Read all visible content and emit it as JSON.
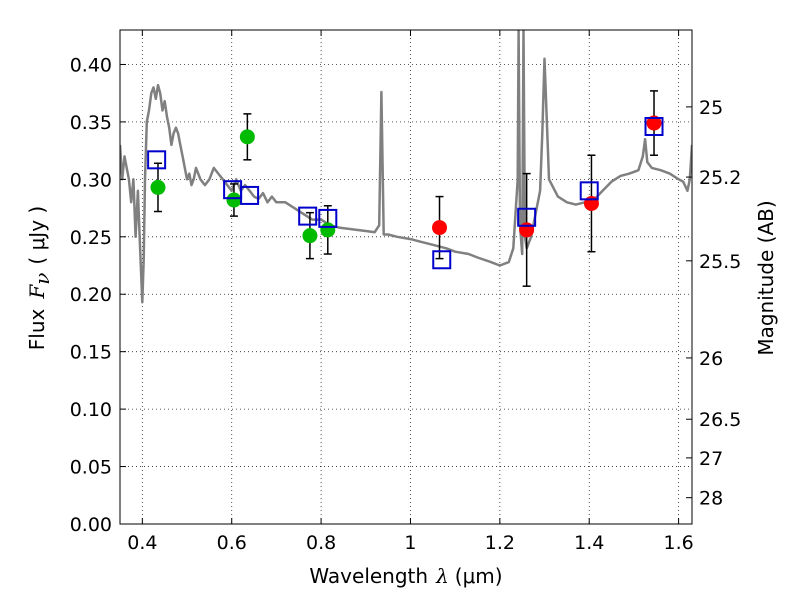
{
  "chart_data": {
    "type": "scatter",
    "title": "",
    "xlabel": "Wavelength",
    "xlabel_symbol": "λ",
    "xlabel_unit": "(μm)",
    "ylabel": "Flux",
    "ylabel_symbol": "F",
    "ylabel_subscript": "ν",
    "ylabel_unit": "( μJy )",
    "y2label": "Magnitude (AB)",
    "xlim": [
      0.35,
      1.63
    ],
    "ylim": [
      0.0,
      0.43
    ],
    "grid": true,
    "x_ticks": [
      0.4,
      0.6,
      0.8,
      1.0,
      1.2,
      1.4,
      1.6
    ],
    "x_tick_labels": [
      "0.4",
      "0.6",
      "0.8",
      "1",
      "1.2",
      "1.4",
      "1.6"
    ],
    "y_ticks": [
      0.0,
      0.05,
      0.1,
      0.15,
      0.2,
      0.25,
      0.3,
      0.35,
      0.4
    ],
    "y_tick_labels": [
      "0.00",
      "0.05",
      "0.10",
      "0.15",
      "0.20",
      "0.25",
      "0.30",
      "0.35",
      "0.40"
    ],
    "y2_ticks": [
      25,
      25.2,
      25.5,
      26,
      26.5,
      27,
      28
    ],
    "y2_tick_labels": [
      "25",
      "25.2",
      "25.5",
      "26",
      "26.5",
      "27",
      "28"
    ],
    "colors": {
      "spectrum": "#808080",
      "green": "#00bb00",
      "red": "#ff0000",
      "model": "#0000cc",
      "error": "#000000"
    },
    "spectrum": {
      "x": [
        0.35,
        0.355,
        0.36,
        0.365,
        0.37,
        0.375,
        0.38,
        0.385,
        0.39,
        0.395,
        0.398,
        0.4,
        0.403,
        0.406,
        0.41,
        0.415,
        0.42,
        0.425,
        0.43,
        0.435,
        0.44,
        0.445,
        0.45,
        0.455,
        0.46,
        0.465,
        0.47,
        0.475,
        0.48,
        0.485,
        0.49,
        0.495,
        0.5,
        0.505,
        0.51,
        0.515,
        0.52,
        0.525,
        0.53,
        0.54,
        0.55,
        0.56,
        0.57,
        0.58,
        0.59,
        0.6,
        0.61,
        0.62,
        0.63,
        0.64,
        0.65,
        0.66,
        0.67,
        0.68,
        0.69,
        0.7,
        0.72,
        0.74,
        0.76,
        0.78,
        0.8,
        0.82,
        0.84,
        0.86,
        0.88,
        0.9,
        0.92,
        0.93,
        0.935,
        0.94,
        0.95,
        0.97,
        1.0,
        1.02,
        1.05,
        1.08,
        1.1,
        1.13,
        1.15,
        1.18,
        1.2,
        1.22,
        1.23,
        1.24,
        1.242,
        1.245,
        1.25,
        1.253,
        1.256,
        1.26,
        1.27,
        1.28,
        1.29,
        1.295,
        1.3,
        1.31,
        1.33,
        1.35,
        1.37,
        1.39,
        1.41,
        1.43,
        1.45,
        1.47,
        1.49,
        1.51,
        1.52,
        1.525,
        1.53,
        1.54,
        1.56,
        1.58,
        1.6,
        1.61,
        1.62,
        1.625,
        1.63
      ],
      "y": [
        0.33,
        0.3,
        0.32,
        0.31,
        0.3,
        0.28,
        0.3,
        0.25,
        0.29,
        0.24,
        0.21,
        0.193,
        0.23,
        0.3,
        0.35,
        0.36,
        0.375,
        0.38,
        0.37,
        0.382,
        0.375,
        0.36,
        0.368,
        0.355,
        0.345,
        0.33,
        0.34,
        0.345,
        0.34,
        0.33,
        0.32,
        0.31,
        0.3,
        0.305,
        0.295,
        0.3,
        0.31,
        0.305,
        0.3,
        0.295,
        0.3,
        0.31,
        0.305,
        0.3,
        0.295,
        0.29,
        0.3,
        0.29,
        0.295,
        0.29,
        0.285,
        0.283,
        0.288,
        0.28,
        0.285,
        0.28,
        0.28,
        0.275,
        0.27,
        0.265,
        0.265,
        0.26,
        0.258,
        0.257,
        0.256,
        0.255,
        0.254,
        0.26,
        0.376,
        0.252,
        0.252,
        0.25,
        0.248,
        0.246,
        0.243,
        0.24,
        0.237,
        0.235,
        0.232,
        0.228,
        0.225,
        0.228,
        0.24,
        0.3,
        0.43,
        0.26,
        0.235,
        0.43,
        0.25,
        0.24,
        0.25,
        0.27,
        0.29,
        0.34,
        0.405,
        0.3,
        0.285,
        0.28,
        0.278,
        0.28,
        0.282,
        0.29,
        0.298,
        0.303,
        0.305,
        0.308,
        0.32,
        0.335,
        0.315,
        0.31,
        0.308,
        0.305,
        0.3,
        0.298,
        0.29,
        0.3,
        0.33
      ]
    },
    "series": [
      {
        "marker": "circle",
        "color": "green",
        "x": [
          0.435,
          0.605,
          0.635,
          0.775,
          0.815
        ],
        "y": [
          0.293,
          0.282,
          0.337,
          0.251,
          0.256
        ],
        "yerr": [
          0.021,
          0.014,
          0.02,
          0.02,
          0.021
        ]
      },
      {
        "marker": "circle",
        "color": "red",
        "x": [
          1.065,
          1.26,
          1.405,
          1.545
        ],
        "y": [
          0.258,
          0.256,
          0.279,
          0.349
        ],
        "yerr": [
          0.027,
          0.049,
          0.042,
          0.028
        ]
      },
      {
        "marker": "square-open",
        "color": "model",
        "x": [
          0.432,
          0.602,
          0.64,
          0.77,
          0.815,
          1.07,
          1.26,
          1.4,
          1.545
        ],
        "y": [
          0.317,
          0.291,
          0.286,
          0.268,
          0.266,
          0.23,
          0.267,
          0.29,
          0.346
        ]
      }
    ]
  }
}
